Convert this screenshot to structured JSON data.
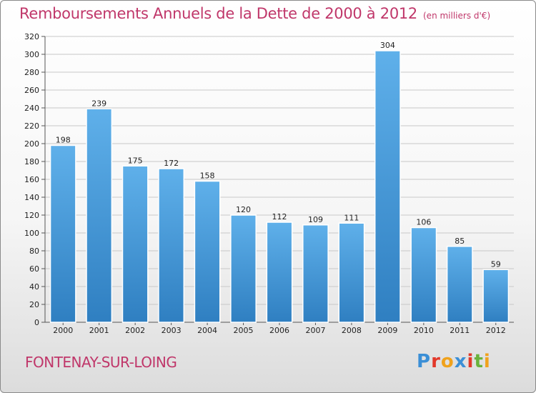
{
  "header": {
    "title": "Remboursements Annuels de la Dette de 2000 à 2012",
    "subtitle": "(en milliers d'€)"
  },
  "footer": {
    "town": "FONTENAY-SUR-LOING",
    "logo_letters": [
      "P",
      "r",
      "o",
      "x",
      "i",
      "t",
      "i"
    ],
    "logo_colors": [
      "#3b8fd6",
      "#e2382a",
      "#f0a21c",
      "#3b8fd6",
      "#e2382a",
      "#6ab23c",
      "#f0a21c"
    ]
  },
  "colors": {
    "bar_top": "#5fb0ea",
    "bar_bottom": "#2f7fc1",
    "accent": "#c0376a"
  },
  "chart_data": {
    "type": "bar",
    "categories": [
      "2000",
      "2001",
      "2002",
      "2003",
      "2004",
      "2005",
      "2006",
      "2007",
      "2008",
      "2009",
      "2010",
      "2011",
      "2012"
    ],
    "values": [
      198,
      239,
      175,
      172,
      158,
      120,
      112,
      109,
      111,
      304,
      106,
      85,
      59
    ],
    "data_labels": [
      "198",
      "239",
      "175",
      "172",
      "158",
      "120",
      "112",
      "109",
      "111",
      "304",
      "106",
      "85",
      "59"
    ],
    "title": "Remboursements Annuels de la Dette de 2000 à 2012",
    "xlabel": "",
    "ylabel": "",
    "ylim": [
      0,
      320
    ],
    "yticks": [
      0,
      20,
      40,
      60,
      80,
      100,
      120,
      140,
      160,
      180,
      200,
      220,
      240,
      260,
      280,
      300,
      320
    ],
    "grid": true,
    "legend": "none"
  }
}
